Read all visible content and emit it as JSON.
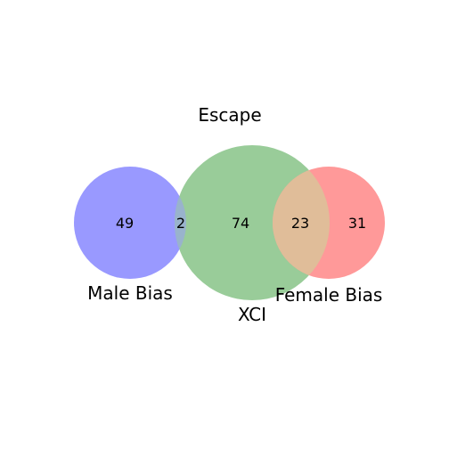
{
  "title": "Escape",
  "sets": [
    {
      "key": "male",
      "label": "Male Bias",
      "color": "#9999ff"
    },
    {
      "key": "xci",
      "label": "XCI",
      "color": "#99cc99"
    },
    {
      "key": "female",
      "label": "Female Bias",
      "color": "#ff9999"
    }
  ],
  "overlap_colors": {
    "male_xci": "#99b3cc",
    "xci_female": "#e0bd99"
  },
  "regions": {
    "male_only": "49",
    "male_xci": "2",
    "xci_only": "74",
    "xci_female": "23",
    "female_only": "31"
  }
}
